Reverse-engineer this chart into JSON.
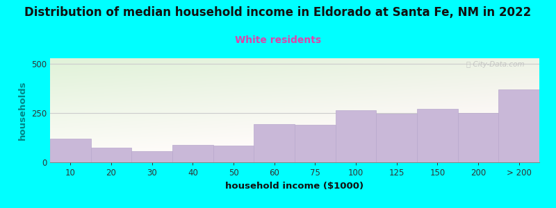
{
  "title": "Distribution of median household income in Eldorado at Santa Fe, NM in 2022",
  "subtitle": "White residents",
  "xlabel": "household income ($1000)",
  "ylabel": "households",
  "background_color": "#00FFFF",
  "bar_color": "#c9b8d8",
  "bar_edge_color": "#b8a8cc",
  "categories": [
    "10",
    "20",
    "30",
    "40",
    "50",
    "60",
    "75",
    "100",
    "125",
    "150",
    "200",
    "> 200"
  ],
  "values": [
    120,
    75,
    58,
    90,
    85,
    195,
    190,
    265,
    248,
    272,
    252,
    370
  ],
  "ylim": [
    0,
    530
  ],
  "yticks": [
    0,
    250,
    500
  ],
  "title_fontsize": 12,
  "subtitle_fontsize": 10,
  "subtitle_color": "#dd44aa",
  "axis_label_fontsize": 9.5,
  "tick_fontsize": 8.5,
  "watermark_text": "Ⓜ City-Data.com",
  "title_color": "#111111",
  "ylabel_color": "#008888",
  "xlabel_color": "#111111"
}
